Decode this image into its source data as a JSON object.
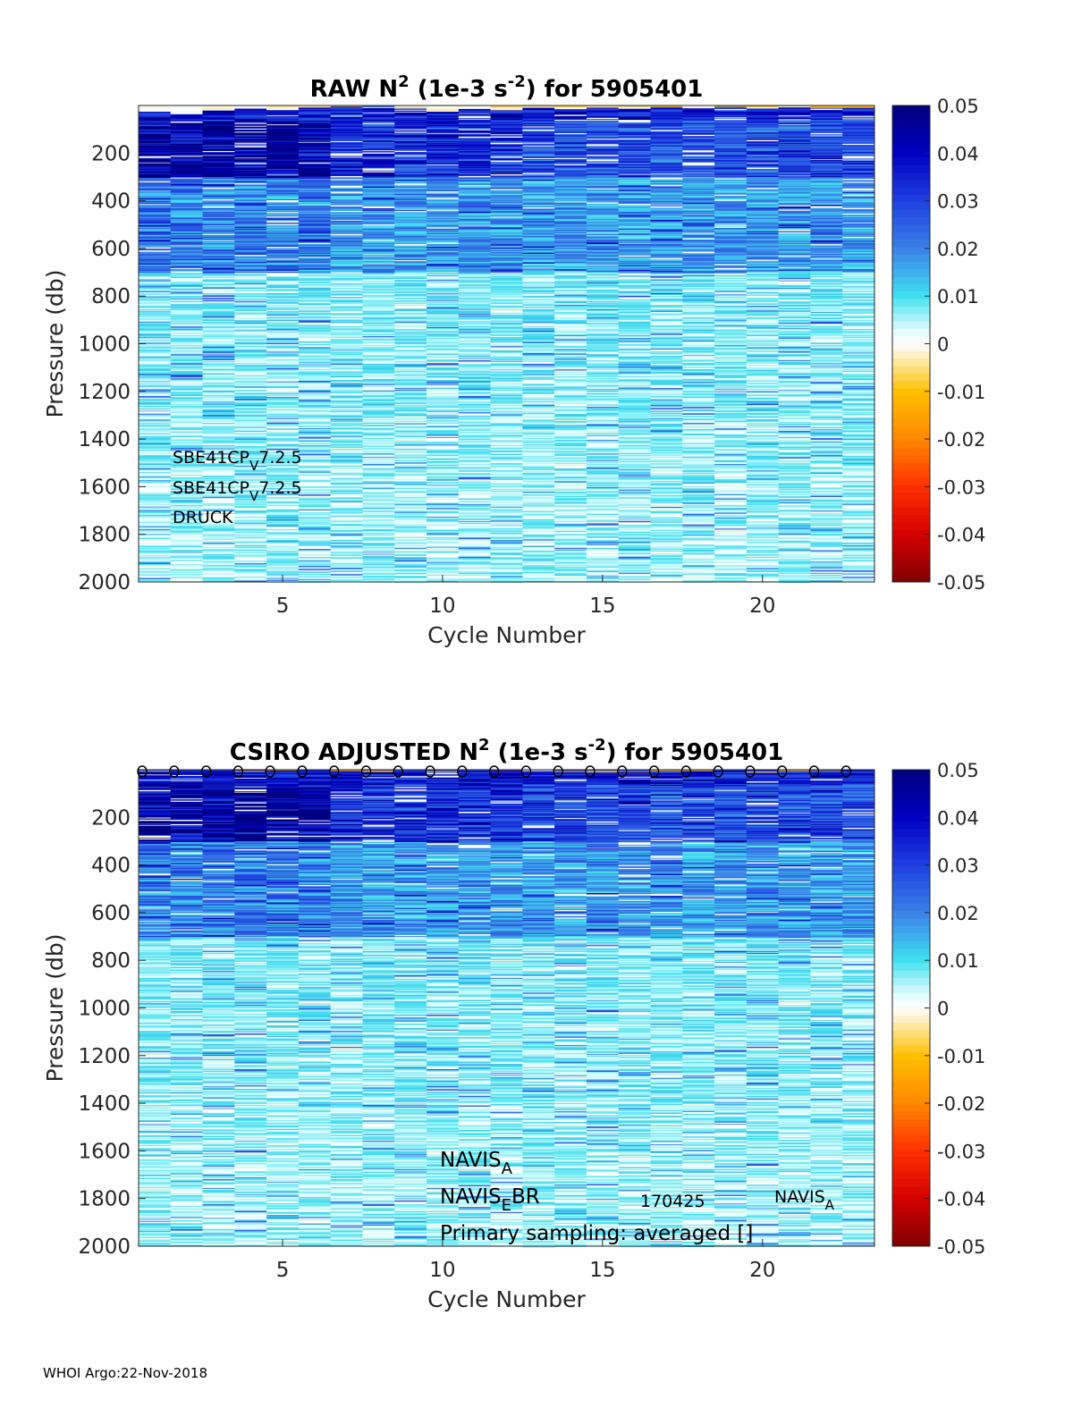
{
  "footer": "WHOI Argo:22-Nov-2018",
  "colormap": {
    "stops": [
      [
        -0.05,
        "#800000"
      ],
      [
        -0.04,
        "#d40000"
      ],
      [
        -0.03,
        "#ff3000"
      ],
      [
        -0.02,
        "#ff8800"
      ],
      [
        -0.01,
        "#ffc000"
      ],
      [
        -0.002,
        "#fff3d0"
      ],
      [
        0.0,
        "#ffffff"
      ],
      [
        0.003,
        "#dffcfc"
      ],
      [
        0.01,
        "#40e0f0"
      ],
      [
        0.02,
        "#3a80e6"
      ],
      [
        0.03,
        "#1e40e0"
      ],
      [
        0.04,
        "#0000c0"
      ],
      [
        0.05,
        "#000080"
      ]
    ]
  },
  "chart_data": [
    {
      "type": "heatmap",
      "title": {
        "prefix": "RAW N",
        "sup1": "2",
        "mid": " (1e-3 s",
        "sup2": "-2",
        "suffix": ") for 5905401"
      },
      "xlabel": "Cycle Number",
      "ylabel": "Pressure (db)",
      "x": [
        1,
        23
      ],
      "xlim": [
        1,
        23
      ],
      "ylim": [
        0,
        2000
      ],
      "y_reversed": true,
      "xticks": [
        "5",
        "10",
        "15",
        "20"
      ],
      "yticks": [
        "200",
        "400",
        "600",
        "800",
        "1000",
        "1200",
        "1400",
        "1600",
        "1800",
        "2000"
      ],
      "clim": [
        -0.05,
        0.05
      ],
      "colorbar_ticks": [
        "0.05",
        "0.04",
        "0.03",
        "0.02",
        "0.01",
        "0",
        "-0.01",
        "-0.02",
        "-0.03",
        "-0.04",
        "-0.05"
      ],
      "annotations": [
        {
          "base": "SBE41CP",
          "sub": "V",
          "rest": "7.2.5"
        },
        {
          "base": "SBE41CP",
          "sub": "V",
          "rest": "7.2.5"
        },
        {
          "base": "DRUCK",
          "sub": "",
          "rest": ""
        }
      ],
      "circle_markers": []
    },
    {
      "type": "heatmap",
      "title": {
        "prefix": "CSIRO  ADJUSTED N",
        "sup1": "2",
        "mid": " (1e-3 s",
        "sup2": "-2",
        "suffix": ") for 5905401"
      },
      "xlabel": "Cycle Number",
      "ylabel": "Pressure (db)",
      "x": [
        1,
        23
      ],
      "xlim": [
        1,
        23
      ],
      "ylim": [
        0,
        2000
      ],
      "y_reversed": true,
      "xticks": [
        "5",
        "10",
        "15",
        "20"
      ],
      "yticks": [
        "200",
        "400",
        "600",
        "800",
        "1000",
        "1200",
        "1400",
        "1600",
        "1800",
        "2000"
      ],
      "clim": [
        -0.05,
        0.05
      ],
      "colorbar_ticks": [
        "0.05",
        "0.04",
        "0.03",
        "0.02",
        "0.01",
        "0",
        "-0.01",
        "-0.02",
        "-0.03",
        "-0.04",
        "-0.05"
      ],
      "annotations": [
        {
          "base": "NAVIS",
          "sub": "A",
          "rest": ""
        },
        {
          "base": "NAVIS",
          "sub": "E",
          "rest": "BR"
        },
        {
          "base": "Primary sampling: averaged []",
          "sub": "",
          "rest": ""
        },
        {
          "base": "170425",
          "sub": "",
          "rest": ""
        },
        {
          "base": "NAVIS",
          "sub": "A",
          "rest": ""
        }
      ],
      "circle_markers": [
        1,
        2,
        3,
        4,
        5,
        6,
        7,
        8,
        9,
        10,
        11,
        12,
        13,
        14,
        15,
        16,
        17,
        18,
        19,
        20,
        21,
        22,
        23
      ]
    }
  ]
}
